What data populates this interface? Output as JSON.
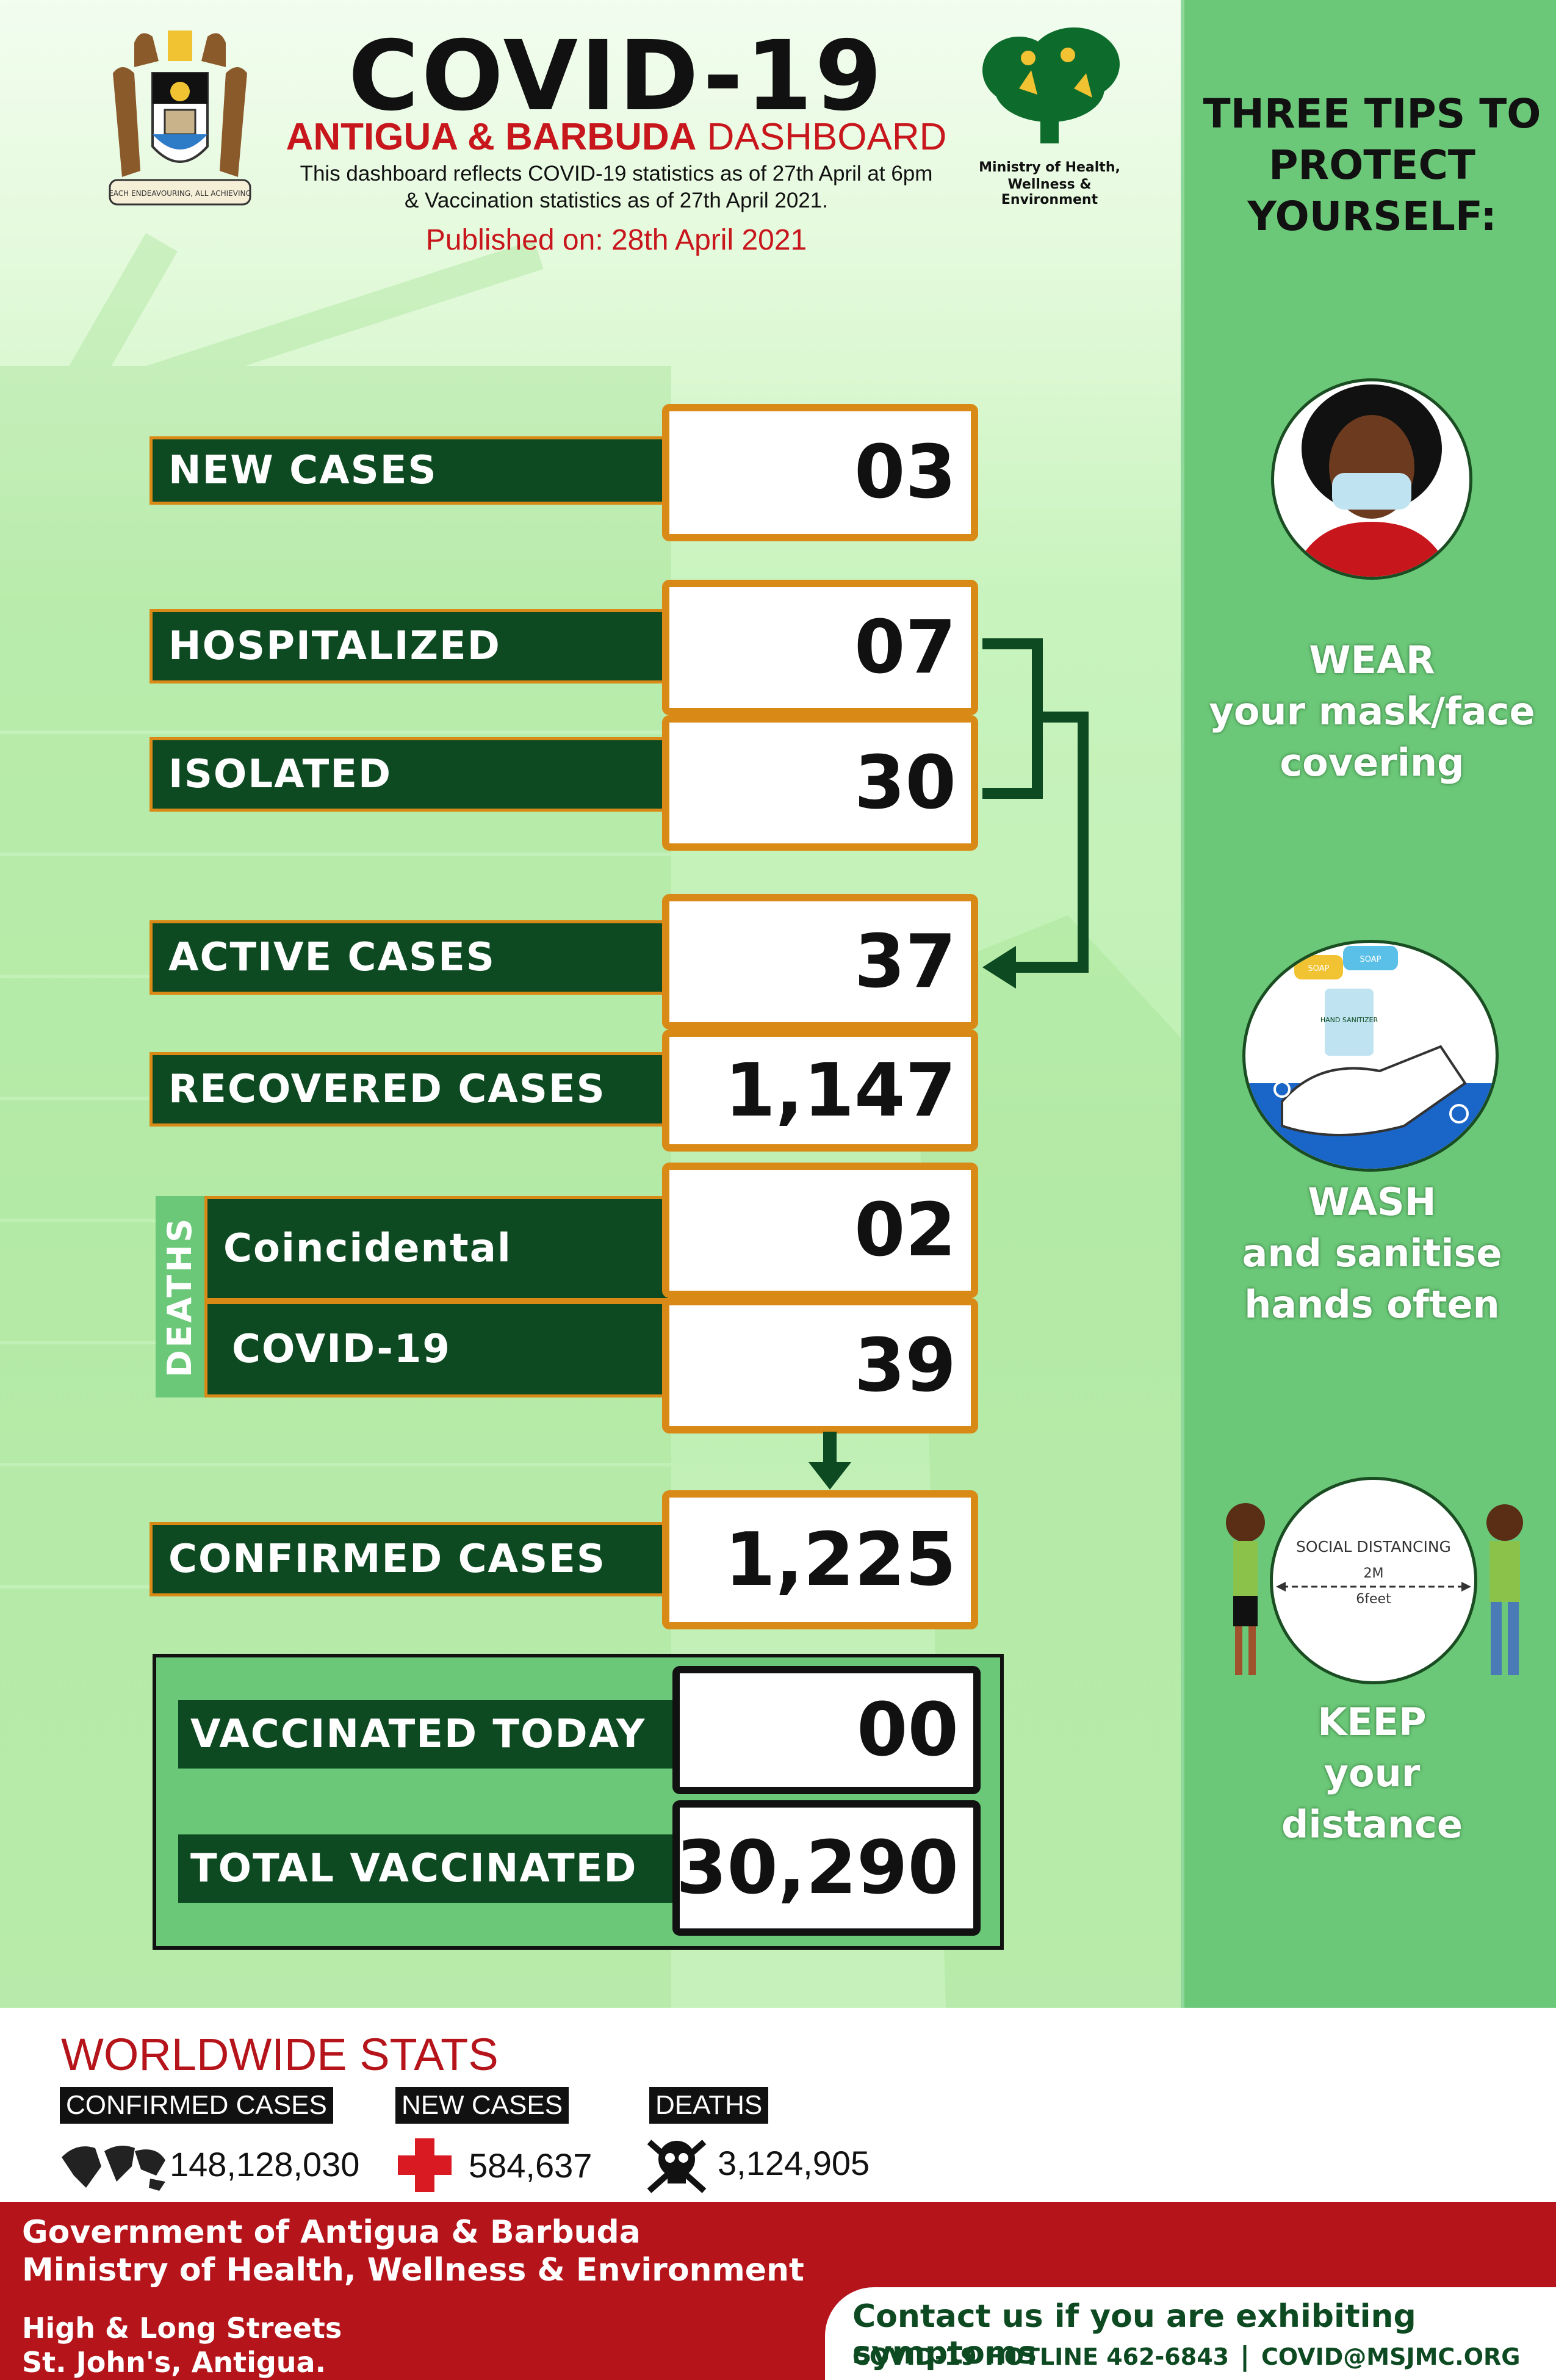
{
  "header": {
    "title": "COVID-19",
    "subtitle_bold": "ANTIGUA & BARBUDA",
    "subtitle_rest": " DASHBOARD",
    "line1": "This dashboard reflects COVID-19 statistics as of 27th  April at 6pm",
    "line2": "& Vaccination statistics as of 27th April 2021.",
    "published": "Published on: 28th April 2021",
    "ministry_line1": "Ministry of Health,",
    "ministry_line2": "Wellness & Environment",
    "crest_motto": "EACH ENDEAVOURING, ALL ACHIEVING"
  },
  "stats": {
    "new_cases": {
      "label": "NEW CASES",
      "value": "03"
    },
    "hospitalized": {
      "label": "HOSPITALIZED",
      "value": "07"
    },
    "isolated": {
      "label": "ISOLATED",
      "value": "30"
    },
    "active": {
      "label": "ACTIVE CASES",
      "value": "37"
    },
    "recovered": {
      "label": "RECOVERED CASES",
      "value": "1,147"
    },
    "deaths_title": "DEATHS",
    "coincidental": {
      "label": "Coincidental",
      "value": "02"
    },
    "covid19": {
      "label": "COVID-19",
      "value": "39"
    },
    "confirmed": {
      "label": "CONFIRMED CASES",
      "value": "1,225"
    }
  },
  "vaccination": {
    "today": {
      "label": "VACCINATED TODAY",
      "value": "00"
    },
    "total": {
      "label": "TOTAL VACCINATED",
      "value": "30,290"
    }
  },
  "tips": {
    "title_line1": "THREE TIPS TO",
    "title_line2": "PROTECT",
    "title_line3": "YOURSELF:",
    "tip1": [
      "WEAR",
      "your mask/face",
      "covering"
    ],
    "tip2": [
      "WASH",
      "and sanitise",
      "hands often"
    ],
    "tip3": [
      "KEEP",
      "your",
      "distance"
    ],
    "soap1": "SOAP",
    "soap2": "SOAP",
    "sanitizer": "HAND SANITIZER",
    "distancing_label": "SOCIAL DISTANCING",
    "distance_m": "2M",
    "distance_ft": "6feet"
  },
  "worldwide": {
    "title": "WORLDWIDE STATS",
    "confirmed_label": "CONFIRMED CASES",
    "confirmed_value": "148,128,030",
    "new_label": "NEW CASES",
    "new_value": "584,637",
    "deaths_label": "DEATHS",
    "deaths_value": "3,124,905"
  },
  "footer": {
    "gov": "Government of Antigua & Barbuda",
    "ministry": "Ministry of Health, Wellness & Environment",
    "address1": "High & Long Streets",
    "address2": "St. John's, Antigua.",
    "contact": "Contact us if you are exhibiting symptoms",
    "hotline": "COVID-19 HOTLINE 462-6843",
    "separator": "|",
    "email": "COVID@MSJMC.ORG"
  },
  "colors": {
    "dark_green": "#0d4a22",
    "orange": "#d98a16",
    "red": "#b5141b",
    "side_green": "#6cc879"
  }
}
